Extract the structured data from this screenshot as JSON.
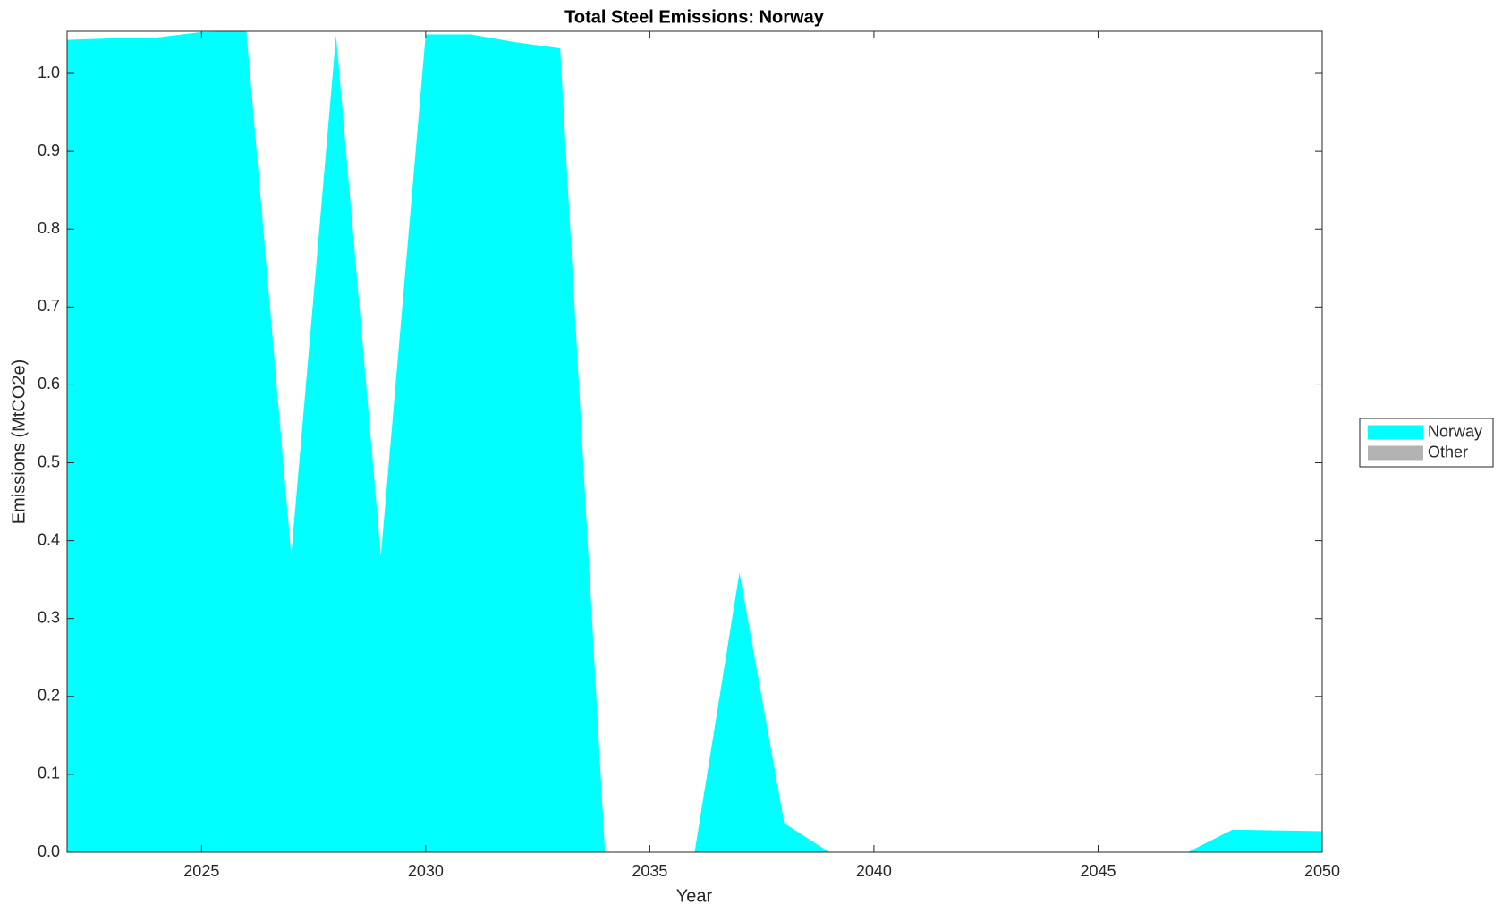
{
  "chart_data": {
    "type": "area",
    "stacked": true,
    "title": "Total Steel Emissions: Norway",
    "x_label": "Year",
    "y_label": "Emissions (MtCO2e)",
    "x": [
      2022,
      2023,
      2024,
      2025,
      2026,
      2027,
      2028,
      2029,
      2030,
      2031,
      2032,
      2033,
      2034,
      2035,
      2036,
      2037,
      2038,
      2039,
      2040,
      2041,
      2042,
      2043,
      2044,
      2045,
      2046,
      2047,
      2048,
      2049,
      2050
    ],
    "series": [
      {
        "name": "Norway",
        "color": "#00ffff",
        "values": [
          1.043,
          1.045,
          1.046,
          1.053,
          1.054,
          0.381,
          1.049,
          0.381,
          1.05,
          1.05,
          1.04,
          1.032,
          0,
          0,
          0,
          0.359,
          0.037,
          0,
          0,
          0,
          0,
          0,
          0,
          0,
          0,
          0,
          0.029,
          0.028,
          0.027
        ]
      },
      {
        "name": "Other",
        "color": "#b3b3b3",
        "values": [
          0,
          0,
          0,
          0,
          0,
          0,
          0,
          0,
          0,
          0,
          0,
          0,
          0,
          0,
          0,
          0,
          0,
          0,
          0,
          0,
          0,
          0,
          0,
          0,
          0,
          0,
          0,
          0,
          0
        ]
      }
    ],
    "xlim": [
      2022,
      2050
    ],
    "xticks": [
      2025,
      2030,
      2035,
      2040,
      2045,
      2050
    ],
    "ylim": [
      0,
      1.054
    ],
    "yticks": [
      {
        "value": 0,
        "label": "0.0"
      },
      0.1,
      0.2,
      0.3,
      0.4,
      0.5,
      0.6,
      0.7,
      0.8,
      0.9,
      {
        "value": 1,
        "label": "1.0"
      }
    ],
    "legend": "outside-right"
  }
}
